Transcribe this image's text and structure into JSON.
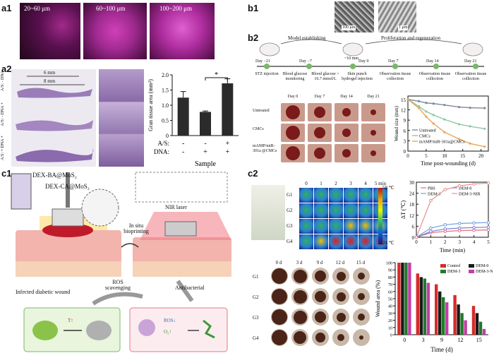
{
  "labels": {
    "a1": "a1",
    "a2": "a2",
    "b1": "b1",
    "b2": "b2",
    "c1": "c1",
    "c2": "c2"
  },
  "a1": {
    "depths": [
      "20~60 μm",
      "60~100 μm",
      "100~200 μm"
    ]
  },
  "a2": {
    "row_labels": [
      "A/S: - DNA",
      "A/S: - DNA +",
      "A/S: + DNA +"
    ],
    "dims": [
      "6 mm",
      "8 mm"
    ],
    "chart_data": {
      "type": "bar",
      "categories": [
        "1",
        "2",
        "3"
      ],
      "values": [
        1.25,
        0.78,
        1.72
      ],
      "errors": [
        0.2,
        0.03,
        0.15
      ],
      "ylabel": "Gran tissue area (mm²)",
      "ylim": [
        0,
        2.0
      ],
      "yticks": [
        "0",
        "0.5",
        "1.0",
        "1.5",
        "2.0"
      ],
      "xlabel": "Sample",
      "rows": [
        {
          "label": "A/S:",
          "signs": [
            "-",
            "-",
            "+"
          ]
        },
        {
          "label": "DNA:",
          "signs": [
            "-",
            "+",
            "+"
          ]
        }
      ],
      "significance": "*"
    }
  },
  "b1": {
    "scale_left": "100 μm",
    "scale_right": "1 μm"
  },
  "b2": {
    "phases": [
      "Model establishing",
      "Proliferation and regeneration"
    ],
    "days": [
      "Day −21",
      "Day −7",
      "Day 0",
      "Day 7",
      "Day 14",
      "Day 21"
    ],
    "events": [
      "STZ injection",
      "Blood glucose monitoring",
      "Blood glucose > 16.7 mmol/L",
      "Skin punch hydrogel injection",
      "Observation tissue collection",
      "Observation tissue collection",
      "Observation tissue collection"
    ],
    "wound_dim": "~10 mm",
    "photo_cols": [
      "Day 0",
      "Day 7",
      "Day 14",
      "Day 21"
    ],
    "photo_rows": [
      "Untreated",
      "CMCs",
      "mAMP/miR-301a @CMCs"
    ],
    "chart_data": {
      "type": "line",
      "x": [
        0,
        3,
        5,
        7,
        10,
        14,
        17,
        21
      ],
      "series": [
        {
          "name": "Untreated",
          "values": [
            15,
            14.5,
            14,
            13.8,
            13.4,
            12.8,
            12.6,
            12.5
          ],
          "color": "#7f8a96"
        },
        {
          "name": "CMCs",
          "values": [
            15,
            13,
            11.5,
            10.5,
            9.2,
            7.8,
            7.2,
            6.5
          ],
          "color": "#8fc7a5"
        },
        {
          "name": "mAMP/miR-301a@CMCs",
          "values": [
            15,
            12.5,
            10,
            8,
            5.5,
            3.5,
            2.2,
            1.3
          ],
          "color": "#e8a65a"
        }
      ],
      "ylabel": "Wound size (mm)",
      "xlabel": "Time post-wounding (d)",
      "ylim": [
        0,
        16
      ],
      "xlim": [
        0,
        22
      ],
      "yticks": [
        "0",
        "3",
        "6",
        "9",
        "12",
        "15"
      ],
      "xticks": [
        "0",
        "5",
        "10",
        "15",
        "20"
      ]
    }
  },
  "c1": {
    "inks": [
      "DEX-BA@MoS₂",
      "DEX-CA@MoS₂"
    ],
    "steps": [
      "NIR laser",
      "In situ bioprinting",
      "ROS scavenging",
      "Antibacterial"
    ],
    "wound": "Infected diabetic wound",
    "symbols": [
      "T↑",
      "ROS↓",
      "O₂↑"
    ]
  },
  "c2": {
    "thermal_times": [
      "0",
      "1",
      "2",
      "3",
      "4",
      "5 min"
    ],
    "groups": [
      "G1",
      "G2",
      "G3",
      "G4"
    ],
    "temp_max": "58 ℃",
    "temp_min": "24 ℃",
    "photo_days": [
      "0 d",
      "3 d",
      "9 d",
      "12 d",
      "15 d"
    ],
    "heat_chart": {
      "type": "line",
      "x": [
        0,
        1,
        2,
        3,
        4,
        5
      ],
      "series": [
        {
          "name": "PBS",
          "values": [
            0,
            2.5,
            3.2,
            3.6,
            3.8,
            4.0
          ],
          "color": "#e07080"
        },
        {
          "name": "DEM-0",
          "values": [
            0,
            3.2,
            4.5,
            5.0,
            5.3,
            5.5
          ],
          "color": "#8080d0"
        },
        {
          "name": "DEM-3",
          "values": [
            0,
            5,
            6.8,
            7.5,
            7.8,
            8.0
          ],
          "color": "#70a0e0"
        },
        {
          "name": "DEM-3-NIR",
          "values": [
            0,
            20,
            26,
            28,
            29,
            29.5
          ],
          "color": "#e89090"
        }
      ],
      "ylabel": "ΔT (℃)",
      "xlabel": "Time (min)",
      "ylim": [
        0,
        30
      ],
      "yticks": [
        "0",
        "6",
        "12",
        "18",
        "24",
        "30"
      ],
      "xticks": [
        "0",
        "1",
        "2",
        "3",
        "4",
        "5"
      ]
    },
    "area_chart": {
      "type": "bar",
      "categories": [
        "0",
        "3",
        "9",
        "12",
        "15"
      ],
      "series": [
        {
          "name": "Control",
          "values": [
            100,
            85,
            70,
            55,
            40
          ],
          "color": "#d62b2b"
        },
        {
          "name": "DEM-0",
          "values": [
            100,
            80,
            60,
            42,
            30
          ],
          "color": "#1a1a1a"
        },
        {
          "name": "DEM-3",
          "values": [
            100,
            78,
            52,
            30,
            18
          ],
          "color": "#1f7a2a"
        },
        {
          "name": "DEM-3-NIR",
          "values": [
            100,
            72,
            45,
            20,
            8
          ],
          "color": "#c23fa6"
        }
      ],
      "ylabel": "Wound area (%)",
      "xlabel": "Time (d)",
      "ylim": [
        0,
        100
      ],
      "yticks": [
        "0",
        "10",
        "20",
        "30",
        "40",
        "50",
        "60",
        "70",
        "80",
        "90",
        "100"
      ]
    }
  }
}
